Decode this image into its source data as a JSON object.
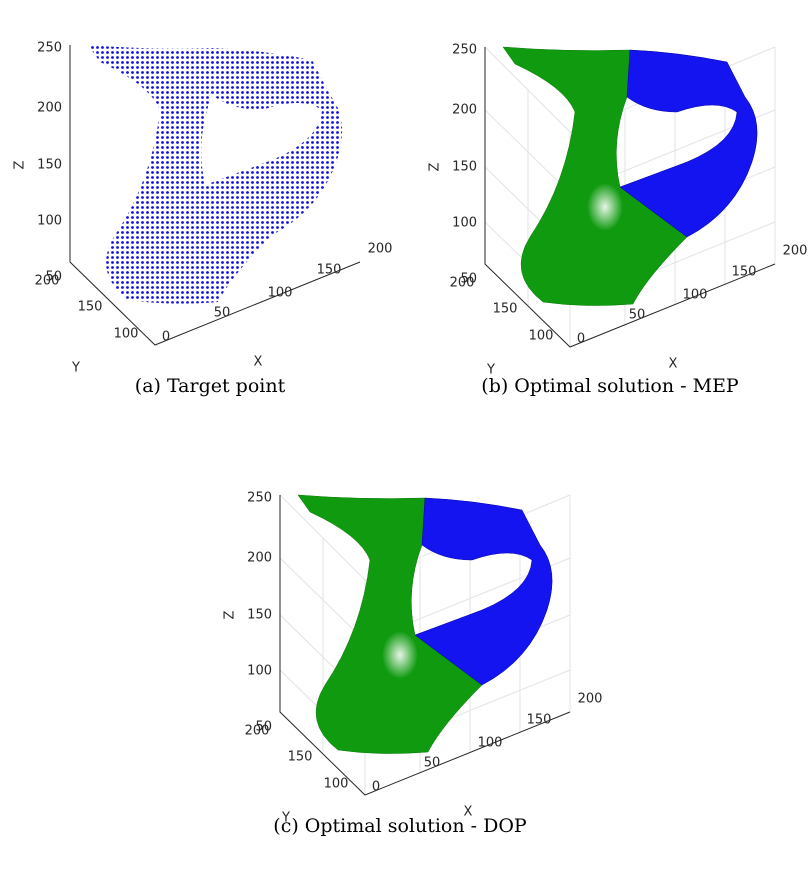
{
  "panels": [
    {
      "caption": "(a) Target point",
      "z_label": "Z",
      "x_label": "X",
      "y_label": "Y",
      "z_ticks": [
        "250",
        "200",
        "150",
        "100",
        "50"
      ],
      "x_ticks": [
        "0",
        "50",
        "100",
        "150",
        "200"
      ],
      "y_ticks": [
        "200",
        "150",
        "100"
      ]
    },
    {
      "caption": "(b) Optimal solution - MEP",
      "z_label": "Z",
      "x_label": "X",
      "y_label": "Y",
      "z_ticks": [
        "250",
        "200",
        "150",
        "100",
        "50"
      ],
      "x_ticks": [
        "0",
        "50",
        "100",
        "150",
        "200"
      ],
      "y_ticks": [
        "200",
        "150",
        "100"
      ]
    },
    {
      "caption": "(c) Optimal solution - DOP",
      "z_label": "Z",
      "x_label": "X",
      "y_label": "Y",
      "z_ticks": [
        "250",
        "200",
        "150",
        "100",
        "50"
      ],
      "x_ticks": [
        "0",
        "50",
        "100",
        "150",
        "200"
      ],
      "y_ticks": [
        "200",
        "150",
        "100"
      ]
    }
  ]
}
